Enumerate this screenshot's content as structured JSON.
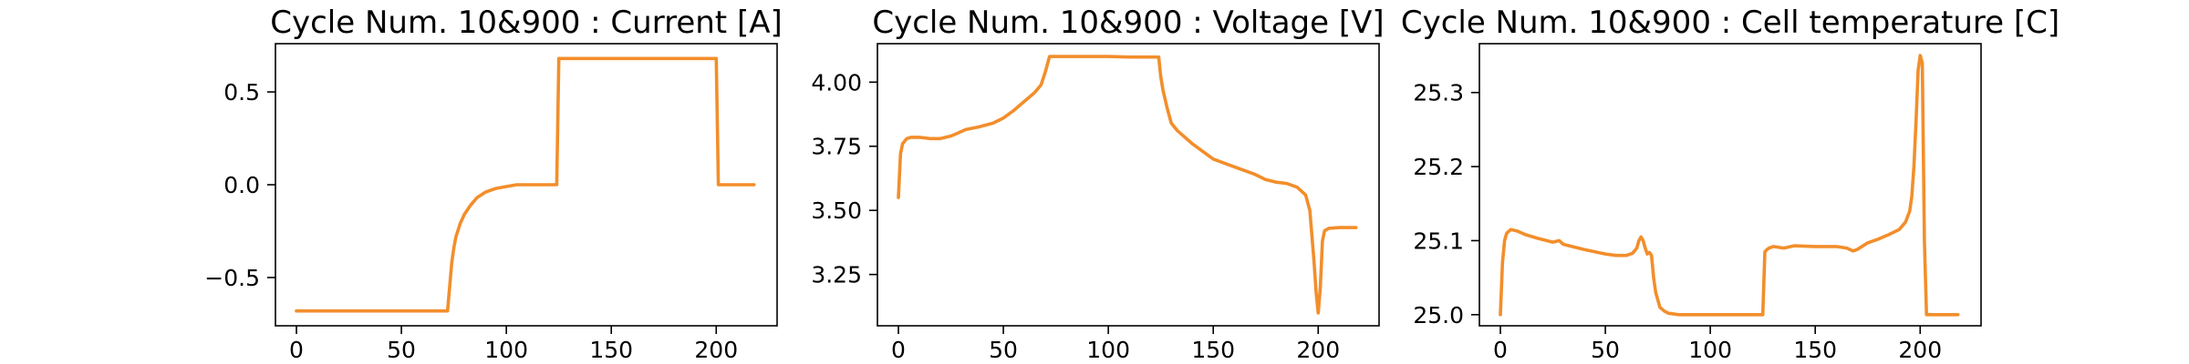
{
  "chart_data": [
    {
      "type": "line",
      "title": "Cycle Num. 10&900 : Current [A]",
      "xlabel": "",
      "ylabel": "",
      "xlim": [
        -10,
        229
      ],
      "ylim": [
        -0.76,
        0.76
      ],
      "xticks": [
        0,
        50,
        100,
        150,
        200
      ],
      "xtick_labels": [
        "0",
        "50",
        "100",
        "150",
        "200"
      ],
      "yticks": [
        -0.5,
        0.0,
        0.5
      ],
      "ytick_labels": [
        "−0.5",
        "0.0",
        "0.5"
      ],
      "grid": false,
      "series": [
        {
          "color": "#f28e2b",
          "x": [
            0,
            10,
            20,
            30,
            40,
            50,
            60,
            70,
            72,
            73,
            74,
            75,
            76,
            78,
            80,
            83,
            86,
            90,
            95,
            100,
            105,
            108,
            110,
            115,
            120,
            124,
            125,
            126,
            130,
            150,
            170,
            190,
            200,
            201,
            202,
            210,
            218
          ],
          "y": [
            -0.68,
            -0.68,
            -0.68,
            -0.68,
            -0.68,
            -0.68,
            -0.68,
            -0.68,
            -0.68,
            -0.55,
            -0.42,
            -0.34,
            -0.28,
            -0.21,
            -0.16,
            -0.11,
            -0.07,
            -0.04,
            -0.02,
            -0.01,
            0.0,
            0.0,
            0.0,
            0.0,
            0.0,
            0.0,
            0.68,
            0.68,
            0.68,
            0.68,
            0.68,
            0.68,
            0.68,
            0.0,
            0.0,
            0.0,
            0.0
          ]
        }
      ]
    },
    {
      "type": "line",
      "title": "Cycle Num. 10&900 : Voltage [V]",
      "xlabel": "",
      "ylabel": "",
      "xlim": [
        -10,
        229
      ],
      "ylim": [
        3.05,
        4.15
      ],
      "xticks": [
        0,
        50,
        100,
        150,
        200
      ],
      "xtick_labels": [
        "0",
        "50",
        "100",
        "150",
        "200"
      ],
      "yticks": [
        3.25,
        3.5,
        3.75,
        4.0
      ],
      "ytick_labels": [
        "3.25",
        "3.50",
        "3.75",
        "4.00"
      ],
      "grid": false,
      "series": [
        {
          "color": "#f28e2b",
          "x": [
            0,
            1,
            2,
            4,
            6,
            10,
            15,
            20,
            25,
            28,
            32,
            38,
            45,
            50,
            55,
            60,
            65,
            68,
            70,
            72,
            80,
            90,
            100,
            110,
            120,
            124,
            125,
            126,
            128,
            130,
            133,
            140,
            150,
            160,
            170,
            175,
            180,
            185,
            190,
            194,
            196,
            198,
            199,
            200,
            201,
            202,
            203,
            205,
            210,
            218
          ],
          "y": [
            3.55,
            3.72,
            3.76,
            3.78,
            3.785,
            3.785,
            3.78,
            3.78,
            3.79,
            3.8,
            3.815,
            3.825,
            3.84,
            3.86,
            3.89,
            3.925,
            3.96,
            3.99,
            4.04,
            4.1,
            4.1,
            4.1,
            4.1,
            4.098,
            4.098,
            4.098,
            4.02,
            3.97,
            3.9,
            3.84,
            3.81,
            3.76,
            3.7,
            3.67,
            3.64,
            3.62,
            3.61,
            3.605,
            3.59,
            3.56,
            3.5,
            3.3,
            3.18,
            3.1,
            3.2,
            3.38,
            3.42,
            3.43,
            3.433,
            3.433
          ]
        }
      ]
    },
    {
      "type": "line",
      "title": "Cycle Num. 10&900 : Cell temperature [C]",
      "xlabel": "",
      "ylabel": "",
      "xlim": [
        -10,
        229
      ],
      "ylim": [
        24.985,
        25.366
      ],
      "xticks": [
        0,
        50,
        100,
        150,
        200
      ],
      "xtick_labels": [
        "0",
        "50",
        "100",
        "150",
        "200"
      ],
      "yticks": [
        25.0,
        25.1,
        25.2,
        25.3
      ],
      "ytick_labels": [
        "25.0",
        "25.1",
        "25.2",
        "25.3"
      ],
      "grid": false,
      "series": [
        {
          "color": "#f28e2b",
          "x": [
            0,
            1,
            2,
            3,
            5,
            8,
            12,
            18,
            25,
            28,
            30,
            40,
            50,
            55,
            60,
            63,
            65,
            66,
            67,
            68,
            69,
            70,
            71,
            72,
            73,
            74,
            75,
            76,
            78,
            80,
            85,
            90,
            100,
            110,
            120,
            125,
            126,
            127,
            128,
            130,
            135,
            140,
            150,
            160,
            165,
            168,
            170,
            175,
            180,
            185,
            190,
            193,
            195,
            196,
            197,
            198,
            199,
            200,
            201,
            202,
            203,
            205,
            210,
            218
          ],
          "y": [
            25.0,
            25.07,
            25.1,
            25.11,
            25.115,
            25.113,
            25.108,
            25.103,
            25.098,
            25.1,
            25.095,
            25.088,
            25.082,
            25.08,
            25.08,
            25.083,
            25.09,
            25.1,
            25.105,
            25.1,
            25.09,
            25.082,
            25.084,
            25.08,
            25.05,
            25.03,
            25.02,
            25.01,
            25.005,
            25.002,
            25.0,
            25.0,
            25.0,
            25.0,
            25.0,
            25.0,
            25.085,
            25.088,
            25.09,
            25.092,
            25.09,
            25.093,
            25.092,
            25.092,
            25.09,
            25.086,
            25.088,
            25.097,
            25.102,
            25.108,
            25.115,
            25.125,
            25.14,
            25.16,
            25.2,
            25.26,
            25.33,
            25.35,
            25.34,
            25.1,
            25.0,
            25.0,
            25.0,
            25.0
          ]
        }
      ]
    }
  ]
}
